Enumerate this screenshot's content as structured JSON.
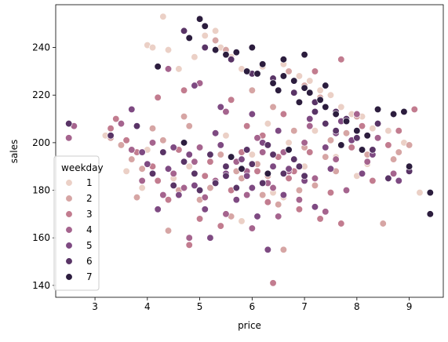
{
  "chart_data": {
    "type": "scatter",
    "title": "",
    "xlabel": "price",
    "ylabel": "sales",
    "xlim": [
      2.25,
      9.65
    ],
    "ylim": [
      135,
      258
    ],
    "x_ticks": [
      3,
      4,
      5,
      6,
      7,
      8,
      9
    ],
    "y_ticks": [
      140,
      160,
      180,
      200,
      220,
      240
    ],
    "grid": false,
    "legend": {
      "title": "weekday",
      "placement": "lower-left",
      "entries": [
        "1",
        "2",
        "3",
        "4",
        "5",
        "6",
        "7"
      ]
    },
    "palette": {
      "1": "#ebd0c6",
      "2": "#d6a5a4",
      "3": "#c27c8f",
      "4": "#a5648e",
      "5": "#7e4a82",
      "6": "#593466",
      "7": "#2c1d3e"
    },
    "series": [
      {
        "name": "1",
        "points": [
          [
            4.3,
            253
          ],
          [
            4.0,
            241
          ],
          [
            4.1,
            240
          ],
          [
            4.4,
            239
          ],
          [
            4.6,
            231
          ],
          [
            4.9,
            236
          ],
          [
            5.1,
            245
          ],
          [
            5.3,
            247
          ],
          [
            5.4,
            240
          ],
          [
            5.6,
            236
          ],
          [
            5.8,
            231
          ],
          [
            6.2,
            232
          ],
          [
            6.6,
            233
          ],
          [
            6.9,
            228
          ],
          [
            7.1,
            226
          ],
          [
            7.3,
            222
          ],
          [
            7.5,
            220
          ],
          [
            7.7,
            215
          ],
          [
            7.9,
            212
          ],
          [
            8.1,
            211
          ],
          [
            8.3,
            206
          ],
          [
            8.6,
            205
          ],
          [
            8.9,
            200
          ],
          [
            9.2,
            179
          ],
          [
            3.4,
            210
          ],
          [
            3.2,
            203
          ],
          [
            3.6,
            188
          ],
          [
            4.0,
            197
          ],
          [
            4.5,
            185
          ],
          [
            5.0,
            198
          ],
          [
            5.5,
            203
          ],
          [
            6.0,
            195
          ],
          [
            6.3,
            208
          ],
          [
            6.7,
            200
          ],
          [
            7.2,
            205
          ],
          [
            7.6,
            194
          ],
          [
            8.0,
            186
          ],
          [
            3.9,
            181
          ],
          [
            5.8,
            167
          ],
          [
            6.4,
            179
          ],
          [
            6.6,
            177
          ],
          [
            7.0,
            190
          ],
          [
            8.2,
            191
          ],
          [
            4.8,
            190
          ]
        ]
      },
      {
        "name": "2",
        "points": [
          [
            3.3,
            202
          ],
          [
            3.5,
            199
          ],
          [
            3.7,
            193
          ],
          [
            3.9,
            189
          ],
          [
            4.1,
            206
          ],
          [
            4.3,
            201
          ],
          [
            4.4,
            163
          ],
          [
            4.6,
            180
          ],
          [
            4.8,
            207
          ],
          [
            5.0,
            176
          ],
          [
            5.2,
            181
          ],
          [
            5.4,
            195
          ],
          [
            5.6,
            169
          ],
          [
            5.8,
            185
          ],
          [
            6.1,
            191
          ],
          [
            6.3,
            186
          ],
          [
            6.5,
            174
          ],
          [
            6.6,
            155
          ],
          [
            6.8,
            205
          ],
          [
            7.0,
            198
          ],
          [
            7.2,
            182
          ],
          [
            7.4,
            194
          ],
          [
            7.6,
            188
          ],
          [
            7.8,
            204
          ],
          [
            8.0,
            211
          ],
          [
            8.2,
            195
          ],
          [
            8.5,
            166
          ],
          [
            8.7,
            193
          ],
          [
            9.0,
            199
          ],
          [
            5.3,
            243
          ],
          [
            5.5,
            239
          ],
          [
            6.0,
            222
          ],
          [
            6.4,
            215
          ],
          [
            6.7,
            230
          ],
          [
            7.0,
            224
          ],
          [
            7.3,
            219
          ],
          [
            4.7,
            211
          ],
          [
            5.7,
            188
          ],
          [
            6.2,
            178
          ],
          [
            6.9,
            180
          ],
          [
            3.8,
            177
          ],
          [
            7.5,
            201
          ],
          [
            8.8,
            196
          ]
        ]
      },
      {
        "name": "3",
        "points": [
          [
            3.4,
            210
          ],
          [
            3.6,
            201
          ],
          [
            3.8,
            196
          ],
          [
            4.1,
            190
          ],
          [
            4.2,
            184
          ],
          [
            4.4,
            176
          ],
          [
            4.6,
            197
          ],
          [
            4.8,
            157
          ],
          [
            5.0,
            168
          ],
          [
            5.2,
            192
          ],
          [
            5.4,
            165
          ],
          [
            5.6,
            180
          ],
          [
            5.9,
            207
          ],
          [
            6.1,
            188
          ],
          [
            6.3,
            175
          ],
          [
            6.4,
            141
          ],
          [
            6.5,
            194
          ],
          [
            6.7,
            185
          ],
          [
            6.9,
            172
          ],
          [
            7.1,
            196
          ],
          [
            7.3,
            168
          ],
          [
            7.5,
            179
          ],
          [
            7.7,
            166
          ],
          [
            7.9,
            198
          ],
          [
            8.1,
            207
          ],
          [
            8.3,
            184
          ],
          [
            8.6,
            199
          ],
          [
            8.8,
            205
          ],
          [
            9.1,
            214
          ],
          [
            4.2,
            219
          ],
          [
            4.7,
            222
          ],
          [
            5.6,
            218
          ],
          [
            6.2,
            203
          ],
          [
            6.6,
            212
          ],
          [
            7.2,
            230
          ],
          [
            7.7,
            235
          ],
          [
            3.3,
            206
          ],
          [
            5.1,
            186
          ],
          [
            5.8,
            196
          ],
          [
            6.8,
            188
          ]
        ]
      },
      {
        "name": "4",
        "points": [
          [
            2.6,
            207
          ],
          [
            3.5,
            208
          ],
          [
            3.7,
            197
          ],
          [
            3.9,
            184
          ],
          [
            4.1,
            200
          ],
          [
            4.3,
            178
          ],
          [
            4.5,
            187
          ],
          [
            4.7,
            181
          ],
          [
            4.8,
            160
          ],
          [
            5.0,
            198
          ],
          [
            5.1,
            177
          ],
          [
            5.3,
            184
          ],
          [
            5.5,
            170
          ],
          [
            5.7,
            192
          ],
          [
            5.9,
            178
          ],
          [
            6.0,
            164
          ],
          [
            6.2,
            196
          ],
          [
            6.3,
            183
          ],
          [
            6.5,
            169
          ],
          [
            6.7,
            188
          ],
          [
            6.9,
            176
          ],
          [
            7.0,
            200
          ],
          [
            7.2,
            185
          ],
          [
            7.4,
            171
          ],
          [
            7.6,
            193
          ],
          [
            7.8,
            180
          ],
          [
            8.0,
            212
          ],
          [
            8.2,
            192
          ],
          [
            8.4,
            202
          ],
          [
            8.7,
            187
          ],
          [
            4.4,
            231
          ],
          [
            5.0,
            225
          ],
          [
            5.5,
            213
          ],
          [
            6.1,
            202
          ],
          [
            6.6,
            196
          ],
          [
            7.1,
            207
          ],
          [
            2.5,
            202
          ],
          [
            5.9,
            188
          ],
          [
            6.4,
            181
          ],
          [
            4.9,
            192
          ]
        ]
      },
      {
        "name": "5",
        "points": [
          [
            3.7,
            214
          ],
          [
            3.9,
            196
          ],
          [
            4.0,
            191
          ],
          [
            4.2,
            172
          ],
          [
            4.4,
            189
          ],
          [
            4.6,
            178
          ],
          [
            4.8,
            195
          ],
          [
            4.9,
            182
          ],
          [
            5.1,
            172
          ],
          [
            5.2,
            160
          ],
          [
            5.4,
            199
          ],
          [
            5.5,
            187
          ],
          [
            5.7,
            176
          ],
          [
            5.8,
            193
          ],
          [
            6.0,
            181
          ],
          [
            6.1,
            169
          ],
          [
            6.2,
            200
          ],
          [
            6.3,
            155
          ],
          [
            6.4,
            190
          ],
          [
            6.6,
            178
          ],
          [
            6.8,
            193
          ],
          [
            7.0,
            184
          ],
          [
            7.2,
            173
          ],
          [
            7.4,
            198
          ],
          [
            7.5,
            189
          ],
          [
            7.7,
            209
          ],
          [
            7.9,
            201
          ],
          [
            8.1,
            187
          ],
          [
            8.3,
            195
          ],
          [
            8.8,
            184
          ],
          [
            4.9,
            224
          ],
          [
            5.4,
            215
          ],
          [
            6.0,
            212
          ],
          [
            6.5,
            205
          ],
          [
            7.1,
            210
          ],
          [
            7.6,
            204
          ],
          [
            5.3,
            204
          ],
          [
            5.9,
            186
          ],
          [
            6.7,
            189
          ],
          [
            4.5,
            198
          ]
        ]
      },
      {
        "name": "6",
        "points": [
          [
            2.5,
            208
          ],
          [
            3.3,
            203
          ],
          [
            3.8,
            207
          ],
          [
            4.1,
            187
          ],
          [
            4.3,
            196
          ],
          [
            4.5,
            182
          ],
          [
            4.7,
            192
          ],
          [
            4.9,
            187
          ],
          [
            5.0,
            180
          ],
          [
            5.2,
            195
          ],
          [
            5.3,
            183
          ],
          [
            5.5,
            190
          ],
          [
            5.7,
            181
          ],
          [
            5.9,
            197
          ],
          [
            6.0,
            191
          ],
          [
            6.2,
            183
          ],
          [
            6.4,
            195
          ],
          [
            6.6,
            187
          ],
          [
            6.8,
            193
          ],
          [
            7.0,
            186
          ],
          [
            7.2,
            213
          ],
          [
            7.4,
            208
          ],
          [
            7.6,
            205
          ],
          [
            7.8,
            210
          ],
          [
            8.0,
            202
          ],
          [
            8.3,
            197
          ],
          [
            8.6,
            185
          ],
          [
            9.0,
            188
          ],
          [
            4.7,
            247
          ],
          [
            5.1,
            240
          ],
          [
            5.6,
            235
          ],
          [
            6.0,
            229
          ],
          [
            6.4,
            227
          ],
          [
            6.8,
            221
          ],
          [
            7.2,
            217
          ],
          [
            7.6,
            213
          ],
          [
            8.4,
            208
          ],
          [
            5.5,
            186
          ],
          [
            6.3,
            199
          ],
          [
            6.9,
            190
          ]
        ]
      },
      {
        "name": "7",
        "points": [
          [
            4.2,
            232
          ],
          [
            4.8,
            244
          ],
          [
            5.1,
            249
          ],
          [
            5.5,
            237
          ],
          [
            5.7,
            238
          ],
          [
            5.9,
            230
          ],
          [
            6.0,
            240
          ],
          [
            6.1,
            229
          ],
          [
            6.2,
            233
          ],
          [
            6.4,
            225
          ],
          [
            6.5,
            222
          ],
          [
            6.6,
            228
          ],
          [
            6.8,
            226
          ],
          [
            6.9,
            217
          ],
          [
            7.0,
            223
          ],
          [
            7.1,
            221
          ],
          [
            7.3,
            218
          ],
          [
            7.4,
            215
          ],
          [
            7.6,
            212
          ],
          [
            7.8,
            209
          ],
          [
            8.0,
            205
          ],
          [
            8.2,
            203
          ],
          [
            8.4,
            214
          ],
          [
            8.7,
            212
          ],
          [
            9.0,
            190
          ],
          [
            9.4,
            179
          ],
          [
            9.4,
            170
          ],
          [
            5.0,
            252
          ],
          [
            5.3,
            239
          ],
          [
            6.6,
            235
          ],
          [
            7.0,
            237
          ],
          [
            7.4,
            224
          ],
          [
            7.7,
            199
          ],
          [
            8.1,
            197
          ],
          [
            8.9,
            213
          ],
          [
            5.6,
            194
          ],
          [
            5.8,
            189
          ],
          [
            6.3,
            187
          ],
          [
            6.7,
            197
          ],
          [
            4.7,
            200
          ]
        ]
      }
    ]
  }
}
